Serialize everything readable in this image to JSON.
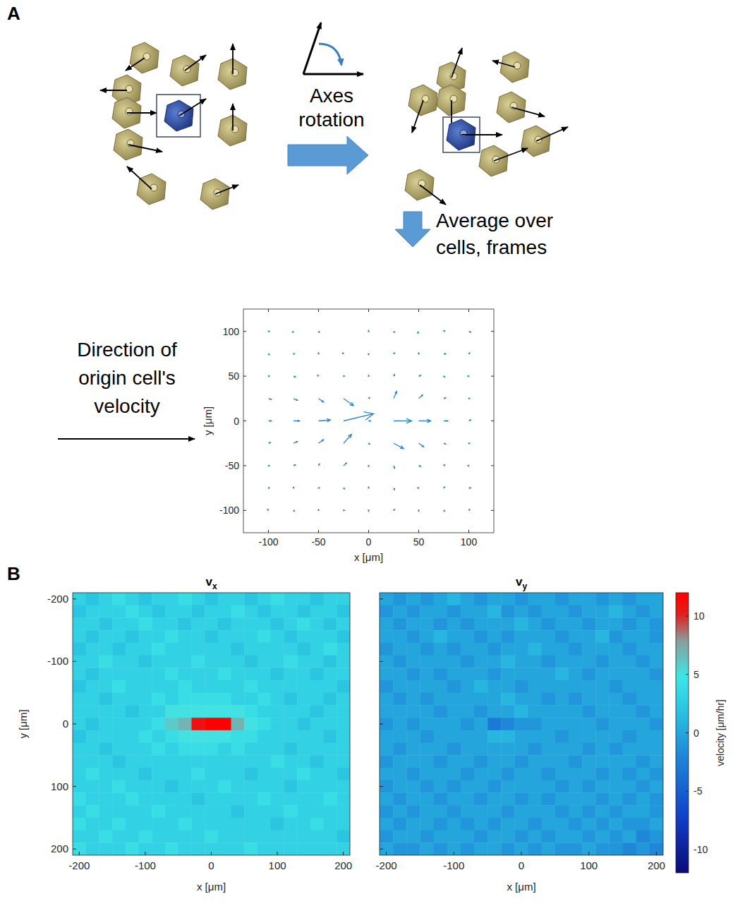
{
  "panels": [
    {
      "label": "A"
    },
    {
      "label": "B"
    }
  ],
  "diagram": {
    "rotation_step": "Axes rotation",
    "average_step": "Average over cells, frames",
    "direction_label": "Direction of origin cell's velocity"
  },
  "chart_data": [
    {
      "type": "quiver",
      "color": "#2e86c9",
      "x_label": "x [μm]",
      "y_label": "y [μm]",
      "xlim": [
        -125,
        125
      ],
      "ylim": [
        -125,
        125
      ],
      "xticks": [
        -100,
        -50,
        0,
        50,
        100
      ],
      "yticks": [
        -100,
        -50,
        0,
        50,
        100
      ],
      "x": [
        -100,
        -75,
        -50,
        -25,
        0,
        25,
        50,
        75,
        100,
        -100,
        -75,
        -50,
        -25,
        0,
        25,
        50,
        75,
        100,
        -100,
        -75,
        -50,
        -25,
        0,
        25,
        50,
        75,
        100,
        -100,
        -75,
        -50,
        -25,
        0,
        25,
        50,
        75,
        100,
        -100,
        -75,
        -50,
        -25,
        0,
        25,
        50,
        75,
        100,
        -100,
        -75,
        -50,
        -25,
        0,
        25,
        50,
        75,
        100,
        -100,
        -75,
        -50,
        -25,
        0,
        25,
        50,
        75,
        100,
        -100,
        -75,
        -50,
        -25,
        0,
        25,
        50,
        75,
        100,
        -100,
        -75,
        -50,
        -25,
        0,
        25,
        50,
        75,
        100
      ],
      "y": [
        100,
        100,
        100,
        100,
        100,
        100,
        100,
        100,
        100,
        75,
        75,
        75,
        75,
        75,
        75,
        75,
        75,
        75,
        50,
        50,
        50,
        50,
        50,
        50,
        50,
        50,
        50,
        25,
        25,
        25,
        25,
        25,
        25,
        25,
        25,
        25,
        0,
        0,
        0,
        0,
        0,
        0,
        0,
        0,
        0,
        -25,
        -25,
        -25,
        -25,
        -25,
        -25,
        -25,
        -25,
        -25,
        -50,
        -50,
        -50,
        -50,
        -50,
        -50,
        -50,
        -50,
        -50,
        -75,
        -75,
        -75,
        -75,
        -75,
        -75,
        -75,
        -75,
        -75,
        -100,
        -100,
        -100,
        -100,
        -100,
        -100,
        -100,
        -100,
        -100
      ],
      "u": [
        1,
        -1,
        1,
        0,
        0,
        1,
        -1,
        1,
        2,
        1,
        1,
        0,
        -1,
        0,
        1,
        0,
        2,
        1,
        1,
        2,
        -1,
        1,
        0,
        1,
        2,
        1,
        -1,
        3,
        4,
        5,
        10,
        1,
        3,
        4,
        2,
        1,
        3,
        6,
        12,
        30,
        2,
        18,
        12,
        4,
        2,
        2,
        4,
        5,
        8,
        1,
        10,
        5,
        2,
        1,
        1,
        2,
        1,
        3,
        0,
        1,
        2,
        1,
        -1,
        1,
        0,
        1,
        1,
        0,
        1,
        -1,
        1,
        2,
        -1,
        1,
        0,
        1,
        0,
        1,
        0,
        1,
        1
      ],
      "v": [
        0,
        -1,
        -1,
        0,
        1,
        -1,
        -2,
        1,
        -1,
        -1,
        0,
        1,
        1,
        -1,
        1,
        1,
        0,
        1,
        0,
        -1,
        1,
        0,
        1,
        2,
        1,
        -1,
        0,
        -1,
        -2,
        -4,
        -8,
        1,
        8,
        4,
        1,
        0,
        0,
        0,
        1,
        8,
        0,
        0,
        0,
        0,
        1,
        1,
        2,
        4,
        10,
        -1,
        -6,
        -4,
        -1,
        0,
        0,
        1,
        2,
        3,
        -1,
        -3,
        -1,
        1,
        0,
        0,
        1,
        0,
        -1,
        1,
        -2,
        0,
        1,
        0,
        1,
        -1,
        1,
        0,
        -1,
        1,
        -1,
        -1,
        1
      ]
    },
    {
      "type": "heatmap",
      "title": {
        "text": "v",
        "subscript": "x"
      },
      "x_label": "x [μm]",
      "y_label": "y [μm]",
      "xlim": [
        -210,
        210
      ],
      "ylim": [
        210,
        -210
      ],
      "xticks": [
        -200,
        -100,
        0,
        100,
        200
      ],
      "yticks": [
        -200,
        -100,
        0,
        100,
        200
      ],
      "x": [
        -200,
        -180,
        -160,
        -140,
        -120,
        -100,
        -80,
        -60,
        -40,
        -20,
        0,
        20,
        40,
        60,
        80,
        100,
        120,
        140,
        160,
        180,
        200
      ],
      "y": [
        -200,
        -180,
        -160,
        -140,
        -120,
        -100,
        -80,
        -60,
        -40,
        -20,
        0,
        20,
        40,
        60,
        80,
        100,
        120,
        140,
        160,
        180,
        200
      ],
      "cells": [
        [
          3,
          2,
          3,
          4,
          3,
          2,
          3,
          3,
          4,
          3,
          2,
          3,
          3,
          2,
          3,
          4,
          3,
          3,
          2,
          3,
          3
        ],
        [
          2,
          3,
          3,
          3,
          4,
          3,
          2,
          3,
          3,
          2,
          3,
          3,
          4,
          3,
          2,
          3,
          3,
          2,
          3,
          3,
          2
        ],
        [
          3,
          3,
          2,
          3,
          3,
          4,
          3,
          3,
          2,
          3,
          3,
          2,
          3,
          3,
          3,
          2,
          3,
          4,
          3,
          2,
          3
        ],
        [
          3,
          2,
          3,
          3,
          2,
          3,
          3,
          4,
          3,
          3,
          2,
          3,
          3,
          3,
          4,
          3,
          2,
          3,
          3,
          3,
          2
        ],
        [
          2,
          3,
          3,
          2,
          3,
          3,
          4,
          3,
          3,
          3,
          3,
          3,
          2,
          3,
          3,
          3,
          3,
          2,
          3,
          4,
          3
        ],
        [
          3,
          3,
          4,
          3,
          3,
          2,
          3,
          3,
          3,
          4,
          3,
          3,
          3,
          2,
          3,
          3,
          4,
          3,
          3,
          2,
          3
        ],
        [
          3,
          2,
          3,
          3,
          3,
          3,
          3,
          4,
          3,
          3,
          3,
          4,
          3,
          3,
          3,
          2,
          3,
          3,
          2,
          3,
          3
        ],
        [
          2,
          3,
          3,
          4,
          3,
          3,
          3,
          3,
          4,
          3,
          3,
          3,
          3,
          4,
          3,
          3,
          3,
          3,
          3,
          3,
          2
        ],
        [
          3,
          3,
          2,
          3,
          3,
          3,
          4,
          3,
          4,
          4,
          4,
          4,
          3,
          3,
          4,
          3,
          2,
          3,
          3,
          2,
          3
        ],
        [
          3,
          3,
          3,
          3,
          2,
          3,
          3,
          5,
          5,
          5,
          5,
          5,
          5,
          4,
          3,
          3,
          3,
          3,
          2,
          3,
          3
        ],
        [
          3,
          2,
          3,
          3,
          3,
          3,
          4,
          6,
          7,
          11,
          14,
          12,
          7,
          5,
          4,
          3,
          3,
          2,
          3,
          3,
          3
        ],
        [
          2,
          3,
          3,
          3,
          3,
          4,
          3,
          4,
          5,
          5,
          5,
          5,
          4,
          4,
          3,
          3,
          3,
          3,
          3,
          2,
          3
        ],
        [
          3,
          3,
          2,
          3,
          3,
          3,
          4,
          3,
          4,
          4,
          4,
          3,
          4,
          3,
          3,
          3,
          2,
          3,
          3,
          3,
          3
        ],
        [
          3,
          3,
          3,
          2,
          3,
          3,
          3,
          3,
          3,
          3,
          3,
          3,
          3,
          3,
          3,
          4,
          3,
          3,
          2,
          3,
          3
        ],
        [
          3,
          4,
          3,
          3,
          3,
          2,
          3,
          3,
          3,
          4,
          3,
          3,
          3,
          2,
          3,
          3,
          3,
          4,
          3,
          3,
          2
        ],
        [
          3,
          3,
          3,
          4,
          3,
          3,
          3,
          2,
          3,
          3,
          3,
          4,
          3,
          3,
          3,
          3,
          2,
          3,
          3,
          3,
          3
        ],
        [
          4,
          3,
          3,
          3,
          4,
          3,
          3,
          3,
          3,
          2,
          3,
          3,
          3,
          3,
          4,
          3,
          3,
          3,
          3,
          4,
          3
        ],
        [
          3,
          4,
          3,
          3,
          3,
          3,
          4,
          3,
          3,
          3,
          3,
          3,
          2,
          3,
          3,
          3,
          4,
          3,
          3,
          3,
          3
        ],
        [
          4,
          3,
          3,
          4,
          3,
          3,
          3,
          3,
          4,
          3,
          3,
          3,
          3,
          3,
          3,
          2,
          3,
          3,
          4,
          3,
          3
        ],
        [
          3,
          3,
          4,
          3,
          3,
          4,
          3,
          3,
          3,
          3,
          4,
          3,
          3,
          3,
          3,
          3,
          3,
          3,
          3,
          3,
          2
        ],
        [
          4,
          3,
          3,
          3,
          4,
          3,
          3,
          4,
          3,
          3,
          3,
          3,
          3,
          4,
          3,
          3,
          3,
          3,
          3,
          3,
          3
        ]
      ]
    },
    {
      "type": "heatmap",
      "title": {
        "text": "v",
        "subscript": "y"
      },
      "x_label": "x [μm]",
      "tick_labels": "x",
      "xlim": [
        -210,
        210
      ],
      "ylim": [
        210,
        -210
      ],
      "xticks": [
        -200,
        -100,
        0,
        100,
        200
      ],
      "yticks": [
        -200,
        -100,
        0,
        100,
        200
      ],
      "x": [
        -200,
        -180,
        -160,
        -140,
        -120,
        -100,
        -80,
        -60,
        -40,
        -20,
        0,
        20,
        40,
        60,
        80,
        100,
        120,
        140,
        160,
        180,
        200
      ],
      "y": [
        -200,
        -180,
        -160,
        -140,
        -120,
        -100,
        -80,
        -60,
        -40,
        -20,
        0,
        20,
        40,
        60,
        80,
        100,
        120,
        140,
        160,
        180,
        200
      ],
      "cells": [
        [
          0,
          -1,
          0,
          -1,
          0,
          1,
          0,
          -1,
          0,
          0,
          -1,
          0,
          0,
          -1,
          0,
          0,
          -1,
          0,
          -1,
          0,
          0
        ],
        [
          -1,
          0,
          -1,
          0,
          0,
          -1,
          0,
          0,
          1,
          -1,
          0,
          -1,
          0,
          0,
          -1,
          0,
          0,
          1,
          0,
          -1,
          0
        ],
        [
          0,
          -1,
          0,
          0,
          -1,
          0,
          -1,
          0,
          0,
          0,
          1,
          0,
          -1,
          0,
          0,
          -1,
          0,
          0,
          -1,
          0,
          -1
        ],
        [
          0,
          0,
          -1,
          0,
          1,
          0,
          0,
          -1,
          0,
          -1,
          0,
          0,
          0,
          -1,
          0,
          0,
          1,
          -1,
          0,
          0,
          -1
        ],
        [
          -1,
          0,
          0,
          -1,
          0,
          -1,
          0,
          0,
          -1,
          0,
          0,
          1,
          0,
          0,
          -1,
          0,
          0,
          0,
          -1,
          0,
          0
        ],
        [
          0,
          -1,
          0,
          0,
          0,
          0,
          -1,
          0,
          0,
          1,
          0,
          0,
          -1,
          0,
          0,
          0,
          -1,
          0,
          0,
          -1,
          0
        ],
        [
          0,
          0,
          -1,
          0,
          -1,
          0,
          0,
          0,
          -1,
          0,
          0,
          0,
          0,
          1,
          0,
          -1,
          0,
          0,
          0,
          0,
          -1
        ],
        [
          -1,
          0,
          0,
          0,
          0,
          -1,
          0,
          1,
          0,
          0,
          -1,
          0,
          0,
          0,
          0,
          0,
          0,
          -1,
          0,
          0,
          0
        ],
        [
          0,
          -1,
          0,
          -1,
          0,
          0,
          0,
          0,
          0,
          1,
          0,
          0,
          -1,
          0,
          -1,
          0,
          0,
          0,
          -1,
          0,
          0
        ],
        [
          0,
          0,
          0,
          0,
          -1,
          0,
          0,
          -1,
          0,
          0,
          1,
          0,
          0,
          0,
          0,
          -1,
          0,
          0,
          0,
          -1,
          0
        ],
        [
          -1,
          0,
          -1,
          0,
          0,
          0,
          -1,
          0,
          -3,
          -2,
          -1,
          -1,
          0,
          0,
          0,
          0,
          -1,
          0,
          0,
          0,
          -1
        ],
        [
          0,
          0,
          0,
          -1,
          0,
          0,
          0,
          0,
          1,
          1,
          0,
          0,
          0,
          -1,
          0,
          0,
          0,
          0,
          -1,
          0,
          0
        ],
        [
          0,
          -1,
          0,
          0,
          0,
          -1,
          0,
          0,
          0,
          0,
          0,
          -1,
          0,
          0,
          0,
          -1,
          0,
          -1,
          0,
          0,
          0
        ],
        [
          -1,
          0,
          0,
          0,
          -1,
          0,
          0,
          -1,
          0,
          0,
          -1,
          0,
          0,
          0,
          -1,
          0,
          0,
          0,
          0,
          -1,
          0
        ],
        [
          0,
          0,
          -1,
          0,
          0,
          0,
          -1,
          0,
          0,
          -1,
          0,
          0,
          -1,
          0,
          0,
          0,
          -1,
          0,
          -1,
          0,
          -1
        ],
        [
          -1,
          0,
          0,
          -1,
          0,
          -1,
          0,
          0,
          -1,
          0,
          0,
          0,
          0,
          -1,
          0,
          -1,
          0,
          0,
          0,
          -1,
          0
        ],
        [
          0,
          -1,
          0,
          0,
          -1,
          0,
          0,
          -1,
          0,
          0,
          -1,
          0,
          -1,
          0,
          0,
          0,
          -1,
          0,
          -1,
          0,
          -1
        ],
        [
          -1,
          0,
          -1,
          0,
          0,
          -1,
          0,
          0,
          0,
          -1,
          0,
          0,
          0,
          -1,
          0,
          -1,
          0,
          -1,
          0,
          0,
          -1
        ],
        [
          0,
          -1,
          0,
          0,
          -1,
          0,
          -1,
          0,
          -1,
          0,
          0,
          -1,
          0,
          0,
          -1,
          0,
          -1,
          0,
          -1,
          -1,
          0
        ],
        [
          -1,
          0,
          0,
          -1,
          0,
          0,
          0,
          -1,
          0,
          0,
          -1,
          0,
          -1,
          0,
          0,
          -1,
          0,
          -1,
          0,
          -2,
          -1
        ],
        [
          0,
          -1,
          -1,
          0,
          -1,
          0,
          -1,
          0,
          0,
          -1,
          0,
          -1,
          0,
          -1,
          -1,
          0,
          -1,
          -1,
          -2,
          -1,
          -2
        ]
      ],
      "colorbar": {
        "range": [
          -12,
          12
        ],
        "ticks": [
          10,
          5,
          0,
          -5,
          -10
        ],
        "label": "velocity [μm/hr]"
      }
    }
  ]
}
